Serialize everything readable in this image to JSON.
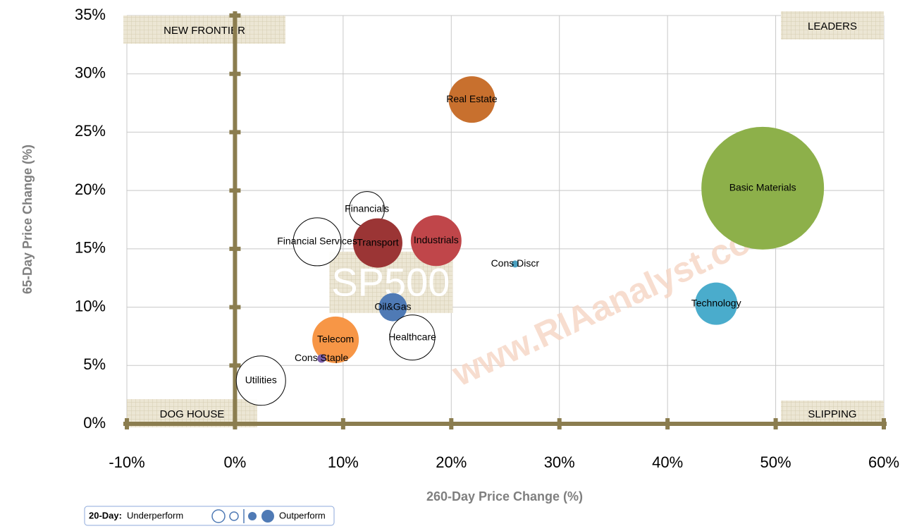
{
  "chart_data": {
    "type": "bubble",
    "x_label": "260-Day Price Change (%)",
    "y_label": "65-Day Price Change (%)",
    "xlim": [
      -10,
      60
    ],
    "ylim": [
      0,
      35
    ],
    "xticks": [
      {
        "value": -10,
        "label": "-10%"
      },
      {
        "value": 0,
        "label": "0%"
      },
      {
        "value": 10,
        "label": "10%"
      },
      {
        "value": 20,
        "label": "20%"
      },
      {
        "value": 30,
        "label": "30%"
      },
      {
        "value": 40,
        "label": "40%"
      },
      {
        "value": 50,
        "label": "50%"
      },
      {
        "value": 60,
        "label": "60%"
      }
    ],
    "yticks": [
      {
        "value": 0,
        "label": "0%"
      },
      {
        "value": 5,
        "label": "5%"
      },
      {
        "value": 10,
        "label": "10%"
      },
      {
        "value": 15,
        "label": "15%"
      },
      {
        "value": 20,
        "label": "20%"
      },
      {
        "value": 25,
        "label": "25%"
      },
      {
        "value": 30,
        "label": "30%"
      },
      {
        "value": 35,
        "label": "35%"
      }
    ],
    "grid": true,
    "series": [
      {
        "name": "Real Estate",
        "color": "#c8702e",
        "x": 21.9,
        "y": 27.8,
        "size": 33
      },
      {
        "name": "Basic Materials",
        "color": "#8db04a",
        "x": 48.8,
        "y": 20.2,
        "size": 87
      },
      {
        "name": "Financials",
        "color": "#ffffff",
        "x": 12.2,
        "y": 18.4,
        "size": 25
      },
      {
        "name": "Financial Services",
        "color": "#ffffff",
        "x": 7.6,
        "y": 15.6,
        "size": 34
      },
      {
        "name": "Transport",
        "color": "#9b3535",
        "x": 13.2,
        "y": 15.5,
        "size": 35
      },
      {
        "name": "Industrials",
        "color": "#c0464a",
        "x": 18.6,
        "y": 15.7,
        "size": 36
      },
      {
        "name": "Cons Discr",
        "color": "#4aa0c0",
        "x": 25.9,
        "y": 13.7,
        "size": 5
      },
      {
        "name": "Technology",
        "color": "#4aaccc",
        "x": 44.5,
        "y": 10.3,
        "size": 30
      },
      {
        "name": "Oil&Gas",
        "color": "#4f7ab5",
        "x": 14.6,
        "y": 10.0,
        "size": 20
      },
      {
        "name": "Healthcare",
        "color": "#ffffff",
        "x": 16.4,
        "y": 7.4,
        "size": 32
      },
      {
        "name": "Telecom",
        "color": "#f79646",
        "x": 9.3,
        "y": 7.2,
        "size": 33
      },
      {
        "name": "Cons Staple",
        "color": "#7a5ea8",
        "x": 8.0,
        "y": 5.6,
        "size": 6
      },
      {
        "name": "Utilities",
        "color": "#ffffff",
        "x": 2.4,
        "y": 3.7,
        "size": 35
      }
    ],
    "benchmark": {
      "label": "SP500",
      "x": 14.4,
      "y": 12.1
    },
    "quadrants": {
      "top_left": "NEW FRONTIER",
      "top_right": "LEADERS",
      "bottom_left": "DOG HOUSE",
      "bottom_right": "SLIPPING"
    },
    "watermark": "www.RIAanalyst.com",
    "legend": {
      "title": "20-Day:",
      "items": [
        "Underperform",
        "Outperform"
      ]
    }
  }
}
